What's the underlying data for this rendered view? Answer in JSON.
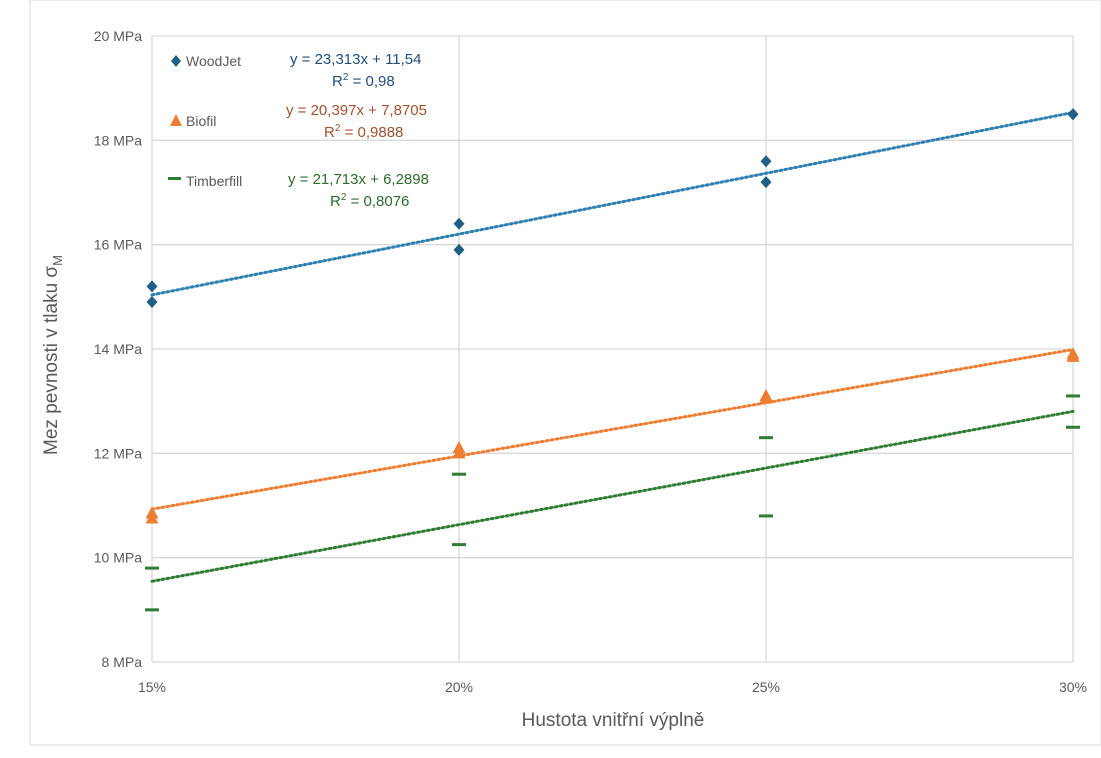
{
  "chart_data": {
    "type": "scatter",
    "xlabel": "Hustota vnitřní výplně",
    "ylabel": "Mez pevnosti v tlaku σ",
    "ylabel_subscript": "M",
    "x_ticks": [
      "15%",
      "20%",
      "25%",
      "30%"
    ],
    "y_ticks": [
      "8 MPa",
      "10 MPa",
      "12 MPa",
      "14 MPa",
      "16 MPa",
      "18 MPa",
      "20 MPa"
    ],
    "xlim": [
      0.15,
      0.3
    ],
    "ylim": [
      8,
      20
    ],
    "grid": true,
    "legend_position": "top-left",
    "series": [
      {
        "name": "WoodJet",
        "marker": "diamond",
        "color": "#1f5f86",
        "trend_color": "#2e7fb2",
        "x": [
          0.15,
          0.15,
          0.2,
          0.2,
          0.25,
          0.25,
          0.3,
          0.3
        ],
        "y": [
          15.2,
          14.9,
          16.4,
          15.9,
          17.6,
          17.2,
          18.5,
          18.5
        ],
        "trend": {
          "slope": 23.313,
          "intercept": 11.54
        },
        "equation": "y = 23,313x + 11,54",
        "r2_value": " = 0,98"
      },
      {
        "name": "Biofil",
        "marker": "triangle",
        "color": "#ed7d31",
        "trend_color": "#ed7d31",
        "x": [
          0.15,
          0.15,
          0.2,
          0.2,
          0.25,
          0.25,
          0.3,
          0.3
        ],
        "y": [
          10.85,
          10.75,
          12.1,
          12.0,
          13.1,
          13.05,
          13.9,
          13.85
        ],
        "trend": {
          "slope": 20.397,
          "intercept": 7.8705
        },
        "equation": "y = 20,397x + 7,8705",
        "r2_value": " = 0,9888"
      },
      {
        "name": "Timberfill",
        "marker": "dash",
        "color": "#2e7d32",
        "trend_color": "#2e7d32",
        "x": [
          0.15,
          0.15,
          0.2,
          0.2,
          0.25,
          0.25,
          0.3,
          0.3
        ],
        "y": [
          9.8,
          9.0,
          11.6,
          10.25,
          12.3,
          10.8,
          13.1,
          12.5
        ],
        "trend": {
          "slope": 21.713,
          "intercept": 6.2898
        },
        "equation": "y = 21,713x + 6,2898",
        "r2_value": " = 0,8076"
      }
    ]
  },
  "colors": {
    "woodjet_label": "#1f4e79",
    "biofil_label": "#a0522d",
    "timberfill_label": "#2e6b2e"
  }
}
